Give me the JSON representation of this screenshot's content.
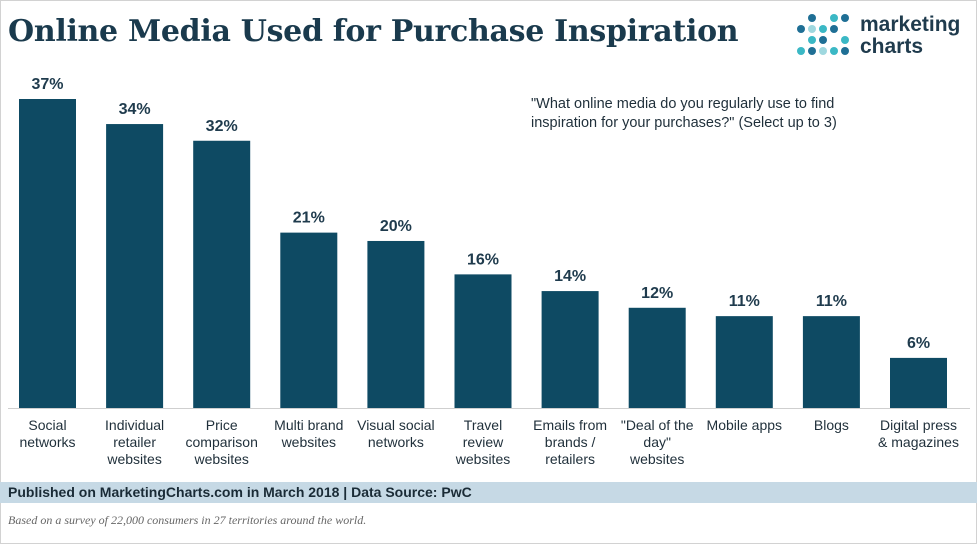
{
  "header": {
    "title": "Online Media Used for Purchase Inspiration"
  },
  "logo": {
    "line1": "marketing",
    "line2": "charts",
    "dot_colors": [
      "#3bb8c5",
      "#1f6f95",
      "#9fd8df"
    ]
  },
  "question": "\"What online media do you regularly use to find inspiration for your purchases?\" (Select up to 3)",
  "chart_data": {
    "type": "bar",
    "categories": [
      [
        "Social",
        "networks"
      ],
      [
        "Individual",
        "retailer",
        "websites"
      ],
      [
        "Price",
        "comparison",
        "websites"
      ],
      [
        "Multi brand",
        "websites"
      ],
      [
        "Visual social",
        "networks"
      ],
      [
        "Travel",
        "review",
        "websites"
      ],
      [
        "Emails from",
        "brands /",
        "retailers"
      ],
      [
        "\"Deal of the",
        "day\"",
        "websites"
      ],
      [
        "Mobile apps"
      ],
      [
        "Blogs"
      ],
      [
        "Digital press",
        "& magazines"
      ]
    ],
    "values": [
      37,
      34,
      32,
      21,
      20,
      16,
      14,
      12,
      11,
      11,
      6
    ],
    "value_labels": [
      "37%",
      "34%",
      "32%",
      "21%",
      "20%",
      "16%",
      "14%",
      "12%",
      "11%",
      "11%",
      "6%"
    ],
    "unit": "%",
    "ylim": [
      0,
      37
    ],
    "grid": false,
    "bar_color": "#0e4a63"
  },
  "footer": {
    "source": "Published on MarketingCharts.com in March 2018 | Data Source: PwC",
    "note": "Based on a survey of 22,000 consumers in 27 territories around the world."
  }
}
